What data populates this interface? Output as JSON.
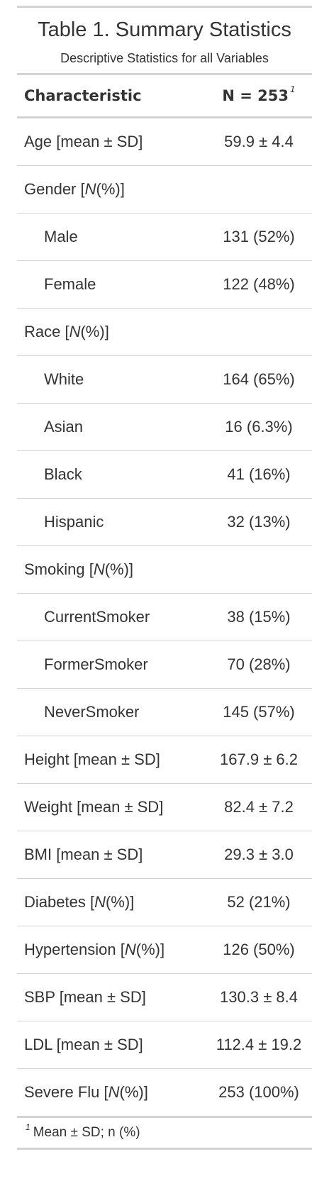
{
  "table": {
    "title": "Table 1. Summary Statistics",
    "subtitle": "Descriptive Statistics for all Variables",
    "header": {
      "characteristic": "Characteristic",
      "n": "N = 253",
      "n_footnote_mark": "1"
    },
    "rows": [
      {
        "label": "Age [mean ± SD]",
        "value": "59.9 ± 4.4"
      },
      {
        "label": "Gender [N (%)]",
        "value": ""
      },
      {
        "label": "Male",
        "value": "131 (52%)"
      },
      {
        "label": "Female",
        "value": "122 (48%)"
      },
      {
        "label": "Race [N (%)]",
        "value": ""
      },
      {
        "label": "White",
        "value": "164 (65%)"
      },
      {
        "label": "Asian",
        "value": "16 (6.3%)"
      },
      {
        "label": "Black",
        "value": "41 (16%)"
      },
      {
        "label": "Hispanic",
        "value": "32 (13%)"
      },
      {
        "label": "Smoking [N (%)]",
        "value": ""
      },
      {
        "label": "CurrentSmoker",
        "value": "38 (15%)"
      },
      {
        "label": "FormerSmoker",
        "value": "70 (28%)"
      },
      {
        "label": "NeverSmoker",
        "value": "145 (57%)"
      },
      {
        "label": "Height [mean ± SD]",
        "value": "167.9 ± 6.2"
      },
      {
        "label": "Weight [mean ± SD]",
        "value": "82.4 ± 7.2"
      },
      {
        "label": "BMI [mean ± SD]",
        "value": "29.3 ± 3.0"
      },
      {
        "label": "Diabetes [N (%)]",
        "value": "52 (21%)"
      },
      {
        "label": "Hypertension [N (%)]",
        "value": "126 (50%)"
      },
      {
        "label": "SBP [mean ± SD]",
        "value": "130.3 ± 8.4"
      },
      {
        "label": "LDL [mean ± SD]",
        "value": "112.4 ± 19.2"
      },
      {
        "label": "Severe Flu [N (%)]",
        "value": "253 (100%)"
      }
    ],
    "footnote": {
      "mark": "1",
      "text": "Mean ± SD; n (%)"
    }
  }
}
